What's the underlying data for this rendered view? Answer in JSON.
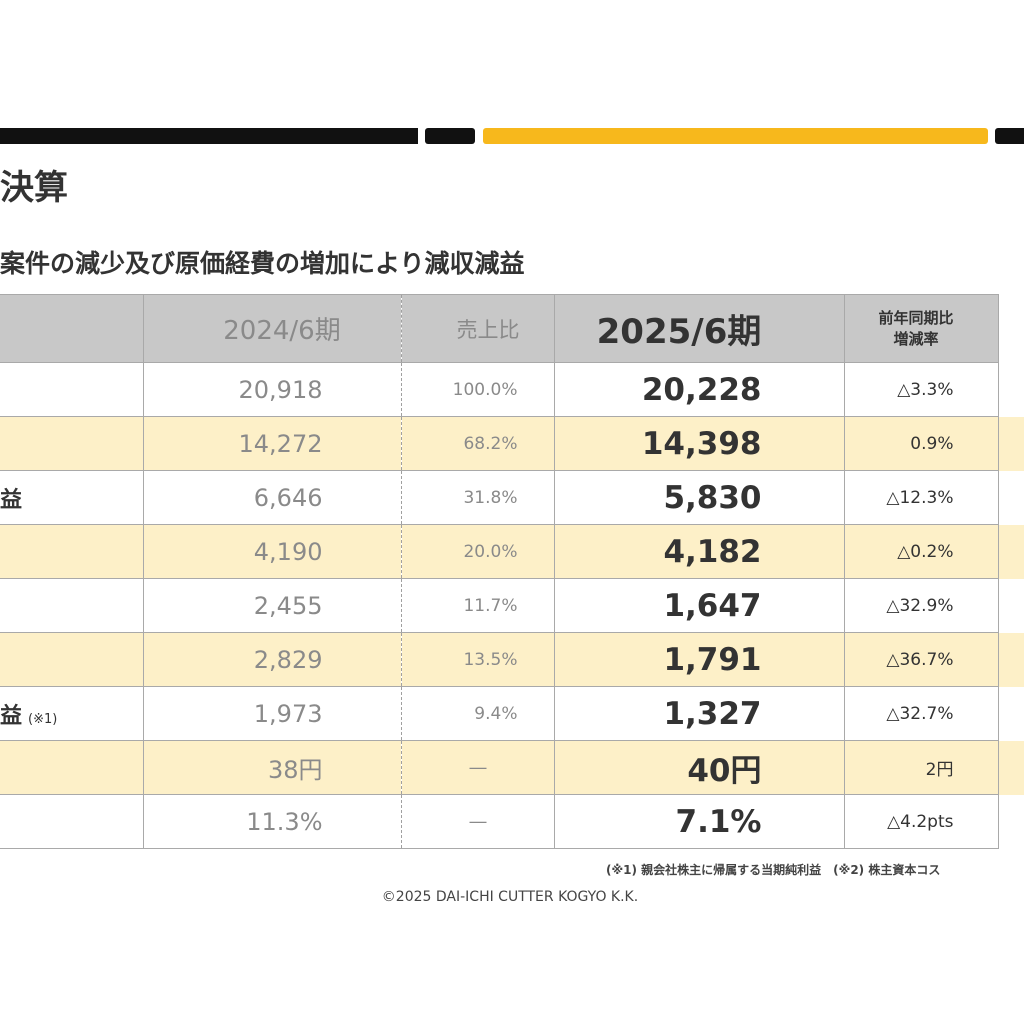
{
  "header": {
    "title": "決算",
    "subtitle": "案件の減少及び原価経費の増加により減収減益"
  },
  "table": {
    "columns": {
      "prev": "2024/6期",
      "ratio": "売上比",
      "current": "2025/6期",
      "yoy_line1": "前年同期比",
      "yoy_line2": "増減率"
    },
    "rows": [
      {
        "label": "",
        "note": "",
        "prev": "20,918",
        "ratio": "100.0%",
        "current": "20,228",
        "yoy": "△3.3%"
      },
      {
        "label": "",
        "note": "",
        "prev": "14,272",
        "ratio": "68.2%",
        "current": "14,398",
        "yoy": "0.9%"
      },
      {
        "label": "益",
        "note": "",
        "prev": "6,646",
        "ratio": "31.8%",
        "current": "5,830",
        "yoy": "△12.3%"
      },
      {
        "label": "",
        "note": "",
        "prev": "4,190",
        "ratio": "20.0%",
        "current": "4,182",
        "yoy": "△0.2%"
      },
      {
        "label": "",
        "note": "",
        "prev": "2,455",
        "ratio": "11.7%",
        "current": "1,647",
        "yoy": "△32.9%"
      },
      {
        "label": "",
        "note": "",
        "prev": "2,829",
        "ratio": "13.5%",
        "current": "1,791",
        "yoy": "△36.7%"
      },
      {
        "label": "益",
        "note": "(※1)",
        "prev": "1,973",
        "ratio": "9.4%",
        "current": "1,327",
        "yoy": "△32.7%"
      },
      {
        "label": "",
        "note": "",
        "prev": "38円",
        "ratio": "―",
        "current": "40円",
        "yoy": "2円"
      },
      {
        "label": "",
        "note": "",
        "prev": "11.3%",
        "ratio": "―",
        "current": "7.1%",
        "yoy": "△4.2pts"
      }
    ]
  },
  "footnote": "(※1) 親会社株主に帰属する当期純利益　(※2) 株主資本コス",
  "copyright": "©2025 DAI-ICHI CUTTER KOGYO K.K.",
  "colors": {
    "accent_yellow": "#f7b81c",
    "bar_black": "#111111",
    "header_gray": "#c8c8c8",
    "row_highlight": "#fdf0c8"
  }
}
